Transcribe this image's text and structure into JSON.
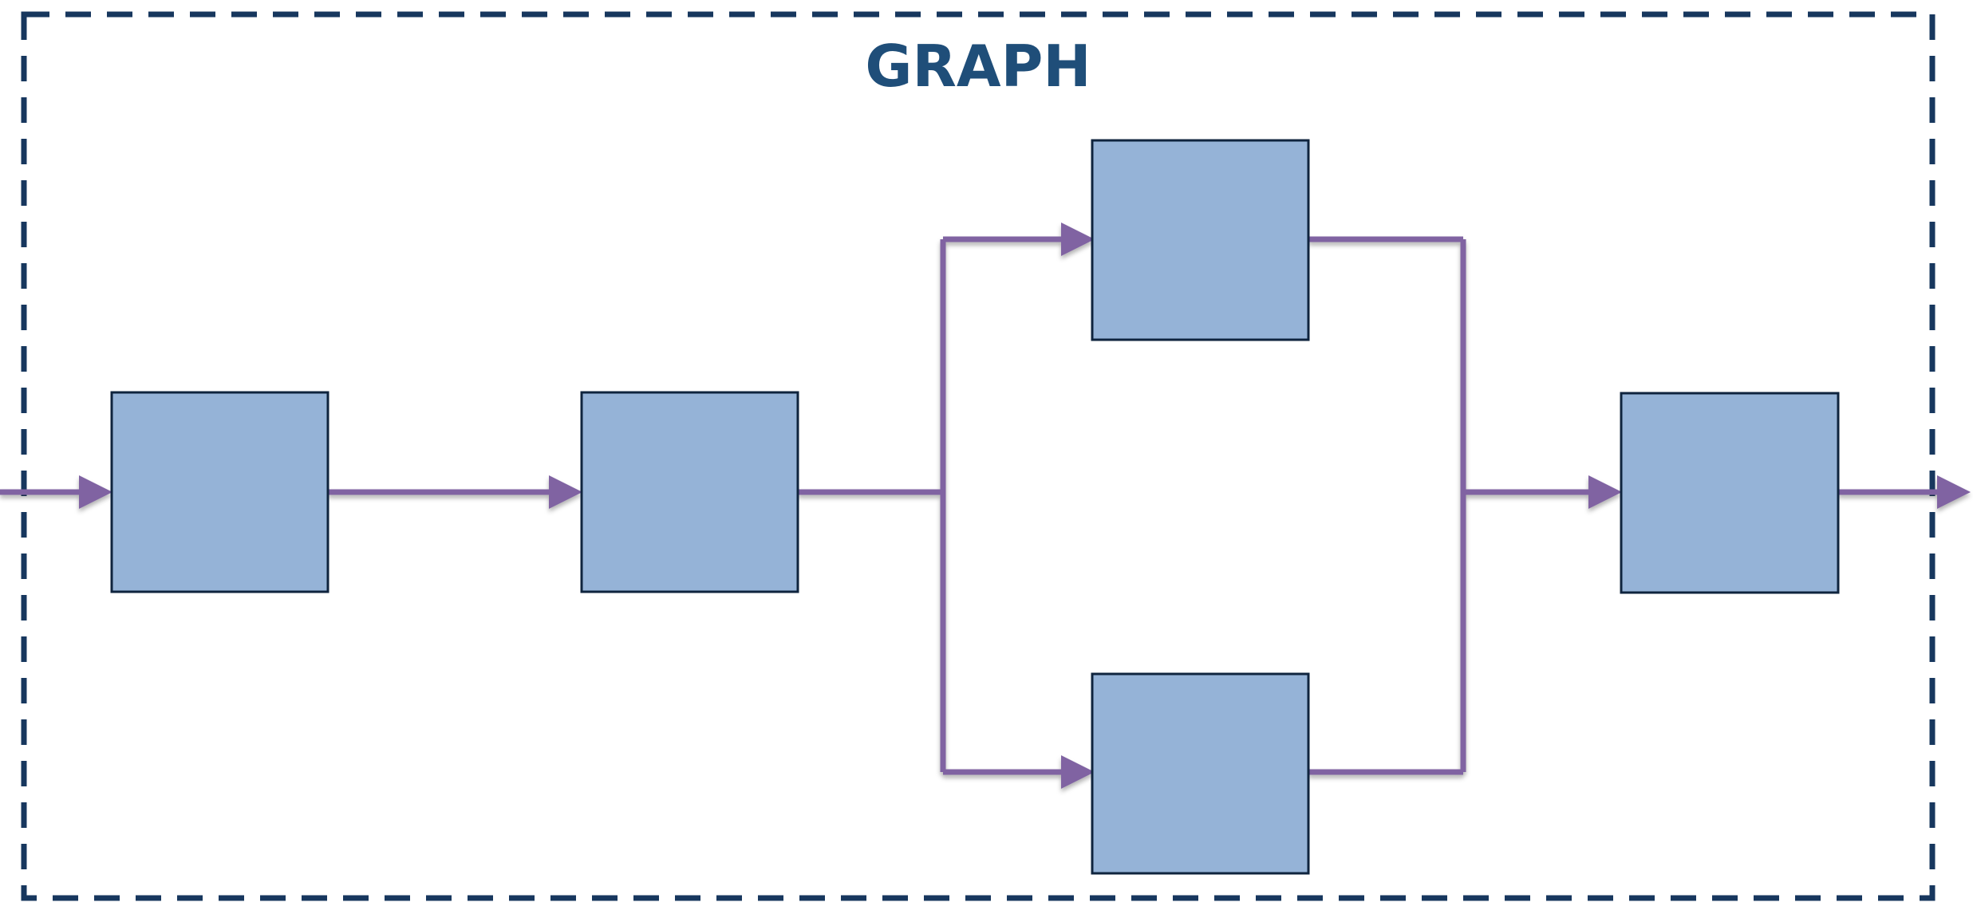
{
  "title": "GRAPH",
  "colors": {
    "border": "#17375E",
    "title": "#1F4E79",
    "node_fill": "#95B3D7",
    "node_stroke": "#0F243E",
    "edge": "#8064A2",
    "background": "#FFFFFF"
  },
  "nodes": [
    {
      "id": "node-1",
      "label": ""
    },
    {
      "id": "node-2",
      "label": ""
    },
    {
      "id": "node-3-top",
      "label": ""
    },
    {
      "id": "node-3-bottom",
      "label": ""
    },
    {
      "id": "node-4",
      "label": ""
    }
  ],
  "edges": [
    {
      "from": "input",
      "to": "node-1"
    },
    {
      "from": "node-1",
      "to": "node-2"
    },
    {
      "from": "node-2",
      "to": "node-3-top"
    },
    {
      "from": "node-2",
      "to": "node-3-bottom"
    },
    {
      "from": "node-3-top",
      "to": "node-4"
    },
    {
      "from": "node-3-bottom",
      "to": "node-4"
    },
    {
      "from": "node-4",
      "to": "output"
    }
  ]
}
